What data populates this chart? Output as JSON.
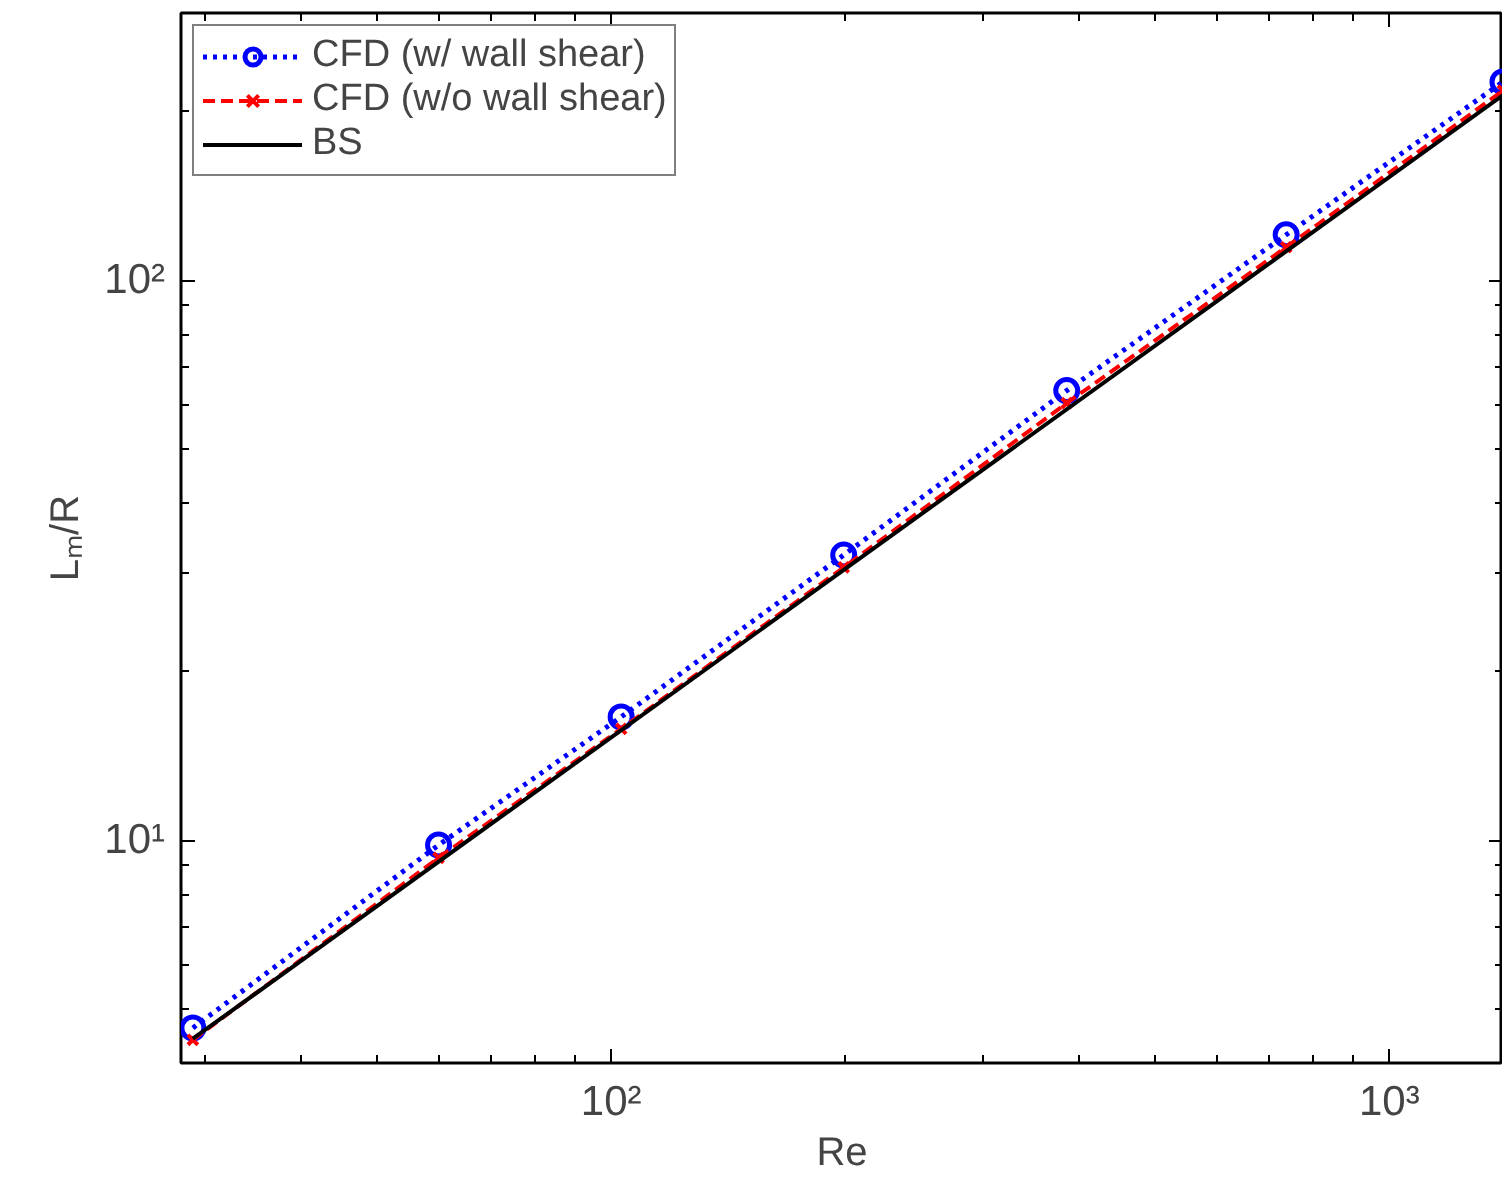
{
  "chart_data": {
    "type": "line",
    "xlabel": "Re",
    "ylabel": "Lₘ/R",
    "log": "xy",
    "grid": false,
    "legend": "top left",
    "xlim": [
      28,
      1400
    ],
    "ylim": [
      4,
      300
    ],
    "xticks": [
      {
        "value": 30,
        "label": null
      },
      {
        "value": 40,
        "label": null
      },
      {
        "value": 50,
        "label": null
      },
      {
        "value": 60,
        "label": null
      },
      {
        "value": 70,
        "label": null
      },
      {
        "value": 80,
        "label": null
      },
      {
        "value": 90,
        "label": null
      },
      {
        "value": 100,
        "label": "10²"
      },
      {
        "value": 200,
        "label": null
      },
      {
        "value": 300,
        "label": null
      },
      {
        "value": 400,
        "label": null
      },
      {
        "value": 500,
        "label": null
      },
      {
        "value": 600,
        "label": null
      },
      {
        "value": 700,
        "label": null
      },
      {
        "value": 800,
        "label": null
      },
      {
        "value": 900,
        "label": null
      },
      {
        "value": 1000,
        "label": "10³"
      }
    ],
    "yticks": [
      {
        "value": 5,
        "label": null
      },
      {
        "value": 6,
        "label": null
      },
      {
        "value": 7,
        "label": null
      },
      {
        "value": 8,
        "label": null
      },
      {
        "value": 9,
        "label": null
      },
      {
        "value": 10,
        "label": "10¹"
      },
      {
        "value": 20,
        "label": null
      },
      {
        "value": 30,
        "label": null
      },
      {
        "value": 40,
        "label": null
      },
      {
        "value": 50,
        "label": null
      },
      {
        "value": 60,
        "label": null
      },
      {
        "value": 70,
        "label": null
      },
      {
        "value": 80,
        "label": null
      },
      {
        "value": 90,
        "label": null
      },
      {
        "value": 100,
        "label": "10²"
      },
      {
        "value": 200,
        "label": null
      }
    ],
    "series": [
      {
        "name": "CFD (w/ wall shear)",
        "color": "#0000ff",
        "marker": "circle",
        "line_style": "dotted",
        "x": [
          29,
          60,
          103,
          199,
          385,
          737,
          1400
        ],
        "values": [
          4.62,
          9.8,
          16.6,
          32.3,
          63.5,
          120.5,
          226
        ]
      },
      {
        "name": "CFD (w/o wall shear)",
        "color": "#ff0000",
        "marker": "cross",
        "line_style": "dashed",
        "x": [
          29,
          60,
          103,
          199,
          385,
          737,
          1400
        ],
        "values": [
          4.4,
          9.3,
          15.8,
          30.7,
          60.3,
          114.5,
          218
        ]
      },
      {
        "name": "BS",
        "color": "#000000",
        "marker": "none",
        "line_style": "solid",
        "x": [
          29,
          1400
        ],
        "values": [
          4.42,
          214
        ]
      }
    ]
  }
}
